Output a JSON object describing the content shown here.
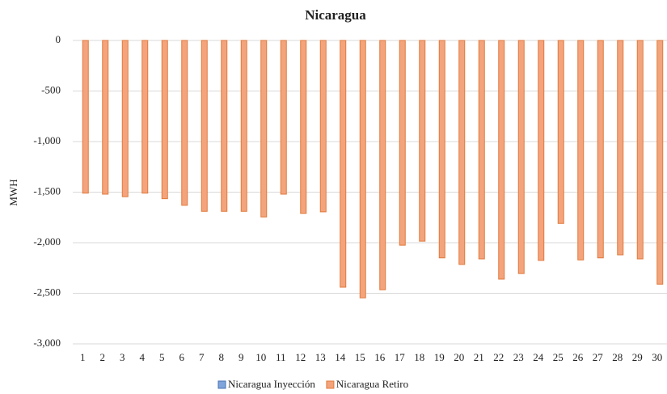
{
  "chart_data": {
    "type": "bar",
    "title": "Nicaragua",
    "y_label": "MWH",
    "categories": [
      "1",
      "2",
      "3",
      "4",
      "5",
      "6",
      "7",
      "8",
      "9",
      "10",
      "11",
      "12",
      "13",
      "14",
      "15",
      "16",
      "17",
      "18",
      "19",
      "20",
      "21",
      "22",
      "23",
      "24",
      "25",
      "26",
      "27",
      "28",
      "29",
      "30"
    ],
    "series": [
      {
        "name": "Nicaragua Inyección",
        "color": "#7fa5dc",
        "values": [
          0,
          0,
          0,
          0,
          0,
          0,
          0,
          0,
          0,
          0,
          0,
          0,
          0,
          0,
          0,
          0,
          0,
          0,
          0,
          0,
          0,
          0,
          0,
          0,
          0,
          0,
          0,
          0,
          0,
          0
        ]
      },
      {
        "name": "Nicaragua Retiro",
        "color": "#f4a47c",
        "values": [
          -1510,
          -1520,
          -1545,
          -1510,
          -1565,
          -1630,
          -1690,
          -1690,
          -1690,
          -1745,
          -1520,
          -1710,
          -1695,
          -2440,
          -2545,
          -2465,
          -2025,
          -1985,
          -2150,
          -2215,
          -2160,
          -2360,
          -2305,
          -2175,
          -1810,
          -2170,
          -2150,
          -2120,
          -2160,
          -2410
        ]
      }
    ],
    "ylim": [
      -3000,
      0
    ],
    "yticks": [
      0,
      -500,
      {
        "value": -1000,
        "label": "-1,000"
      },
      {
        "value": -1500,
        "label": "-1,500"
      },
      {
        "value": -2000,
        "label": "-2,000"
      },
      {
        "value": -2500,
        "label": "-2,500"
      },
      {
        "value": -3000,
        "label": "-3,000"
      }
    ],
    "grid": true
  }
}
